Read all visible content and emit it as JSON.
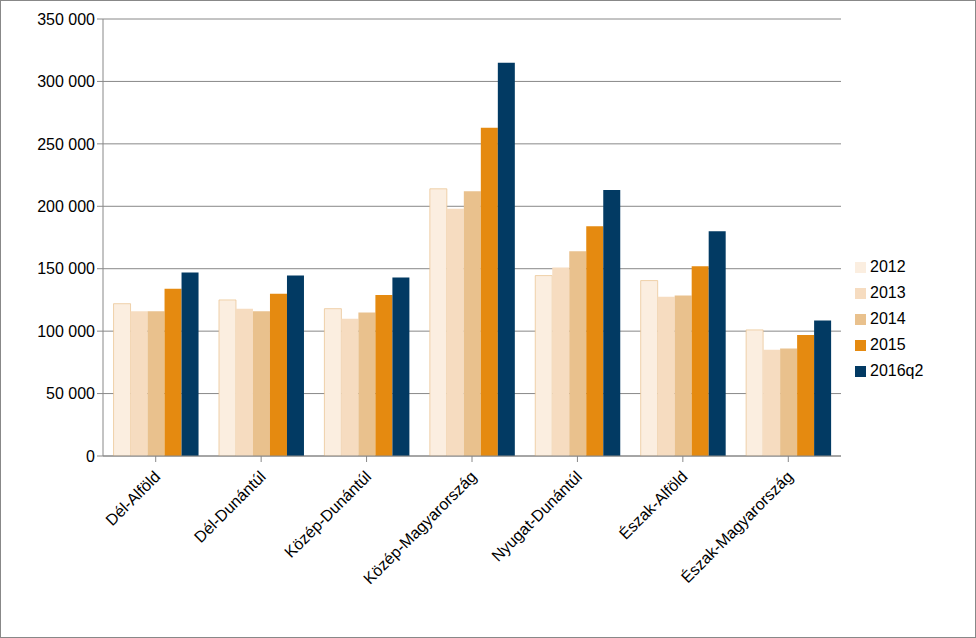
{
  "chart_data": {
    "type": "bar",
    "categories": [
      "Dél-Alföld",
      "Dél-Dunántúl",
      "Közép-Dunántúl",
      "Közép-Magyarország",
      "Nyugat-Dunántúl",
      "Észak-Alföld",
      "Észak-Magyarország"
    ],
    "series": [
      {
        "name": "2012",
        "color": "#fbeee0",
        "values": [
          122000,
          125000,
          118000,
          214000,
          144500,
          140500,
          101000
        ]
      },
      {
        "name": "2013",
        "color": "#f6dcc0",
        "values": [
          116000,
          118000,
          110000,
          198000,
          151000,
          127500,
          85000
        ]
      },
      {
        "name": "2014",
        "color": "#e9c18d",
        "values": [
          116000,
          116000,
          115000,
          212000,
          164000,
          128500,
          86000
        ]
      },
      {
        "name": "2015",
        "color": "#e58a10",
        "values": [
          134000,
          130000,
          129000,
          263000,
          184000,
          152000,
          97000
        ]
      },
      {
        "name": "2016q2",
        "color": "#023a63",
        "values": [
          147000,
          144500,
          143000,
          315000,
          213000,
          180000,
          108500
        ]
      }
    ],
    "ylim": [
      0,
      350000
    ],
    "yticks": [
      {
        "value": 0,
        "label": "0"
      },
      {
        "value": 50000,
        "label": "50 000"
      },
      {
        "value": 100000,
        "label": "100 000"
      },
      {
        "value": 150000,
        "label": "150 000"
      },
      {
        "value": 200000,
        "label": "200 000"
      },
      {
        "value": 250000,
        "label": "250 000"
      },
      {
        "value": 300000,
        "label": "300 000"
      },
      {
        "value": 350000,
        "label": "350 000"
      }
    ],
    "grid": true,
    "legend": "right"
  }
}
